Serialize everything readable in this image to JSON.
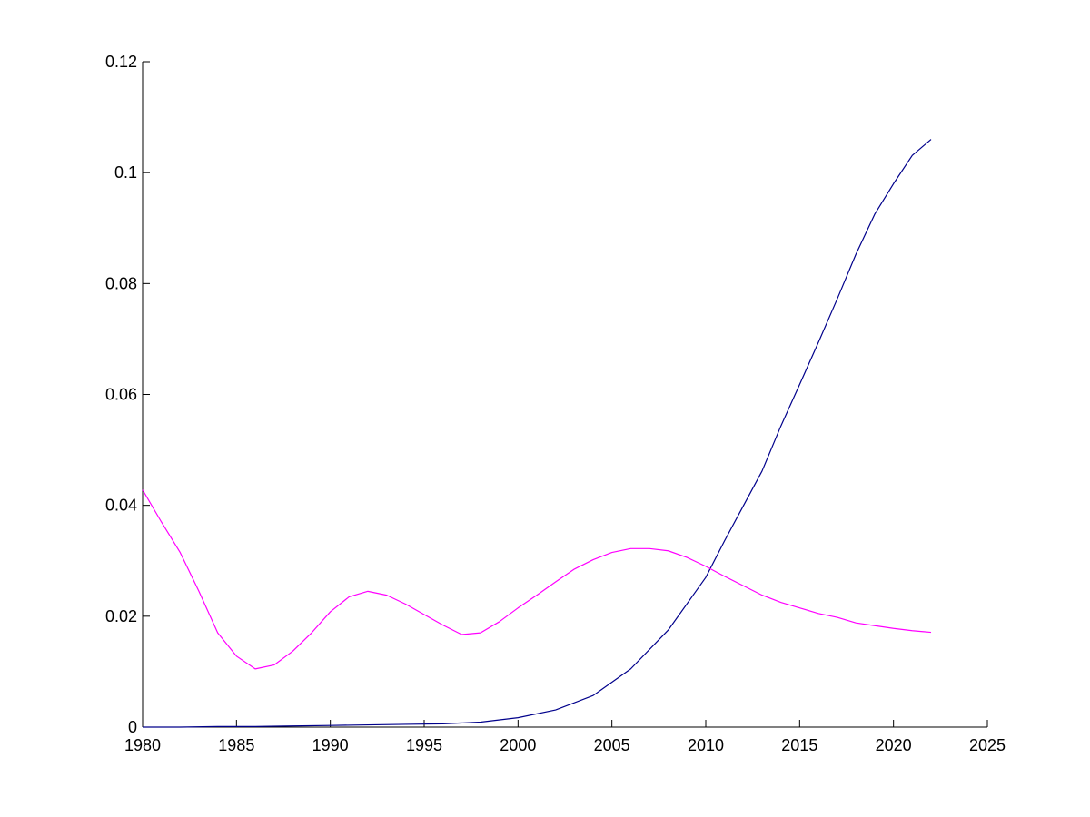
{
  "chart_data": {
    "type": "line",
    "title": "",
    "xlabel": "",
    "ylabel": "",
    "xlim": [
      1980,
      2025
    ],
    "ylim": [
      0,
      0.12
    ],
    "grid": false,
    "x_ticks": [
      1980,
      1985,
      1990,
      1995,
      2000,
      2005,
      2010,
      2015,
      2020,
      2025
    ],
    "x_tick_labels": [
      "1980",
      "1985",
      "1990",
      "1995",
      "2000",
      "2005",
      "2010",
      "2015",
      "2020",
      "2025"
    ],
    "y_ticks": [
      0,
      0.02,
      0.04,
      0.06,
      0.08,
      0.1,
      0.12
    ],
    "y_tick_labels": [
      "0",
      "0.02",
      "0.04",
      "0.06",
      "0.08",
      "0.1",
      "0.12"
    ],
    "series": [
      {
        "color": "#00008b",
        "x": [
          1980,
          1982,
          1984,
          1986,
          1988,
          1990,
          1992,
          1994,
          1996,
          1998,
          2000,
          2002,
          2004,
          2006,
          2008,
          2010,
          2011,
          2012,
          2013,
          2014,
          2015,
          2016,
          2017,
          2018,
          2019,
          2020,
          2021,
          2022
        ],
        "y": [
          0,
          0,
          0.0001,
          0.0001,
          0.0002,
          0.0003,
          0.0004,
          0.0005,
          0.0006,
          0.0009,
          0.0017,
          0.0031,
          0.0057,
          0.0105,
          0.0175,
          0.027,
          0.0336,
          0.0399,
          0.0462,
          0.0543,
          0.0618,
          0.0694,
          0.0772,
          0.0853,
          0.0925,
          0.098,
          0.1031,
          0.106
        ]
      },
      {
        "color": "#ff00ff",
        "x": [
          1980,
          1981,
          1982,
          1983,
          1984,
          1985,
          1986,
          1987,
          1988,
          1989,
          1990,
          1991,
          1992,
          1993,
          1994,
          1995,
          1996,
          1997,
          1998,
          1999,
          2000,
          2001,
          2002,
          2003,
          2004,
          2005,
          2006,
          2007,
          2008,
          2009,
          2010,
          2011,
          2012,
          2013,
          2014,
          2015,
          2016,
          2017,
          2018,
          2019,
          2020,
          2021,
          2022
        ],
        "y": [
          0.0428,
          0.037,
          0.0315,
          0.0245,
          0.017,
          0.0128,
          0.0105,
          0.0112,
          0.0137,
          0.017,
          0.0208,
          0.0235,
          0.0245,
          0.0238,
          0.0222,
          0.0203,
          0.0184,
          0.0167,
          0.017,
          0.019,
          0.0215,
          0.0238,
          0.0262,
          0.0285,
          0.0302,
          0.0315,
          0.0322,
          0.0322,
          0.0318,
          0.0306,
          0.029,
          0.0272,
          0.0255,
          0.0238,
          0.0225,
          0.0215,
          0.0205,
          0.0198,
          0.0188,
          0.0183,
          0.0178,
          0.0174,
          0.0171
        ]
      }
    ]
  }
}
